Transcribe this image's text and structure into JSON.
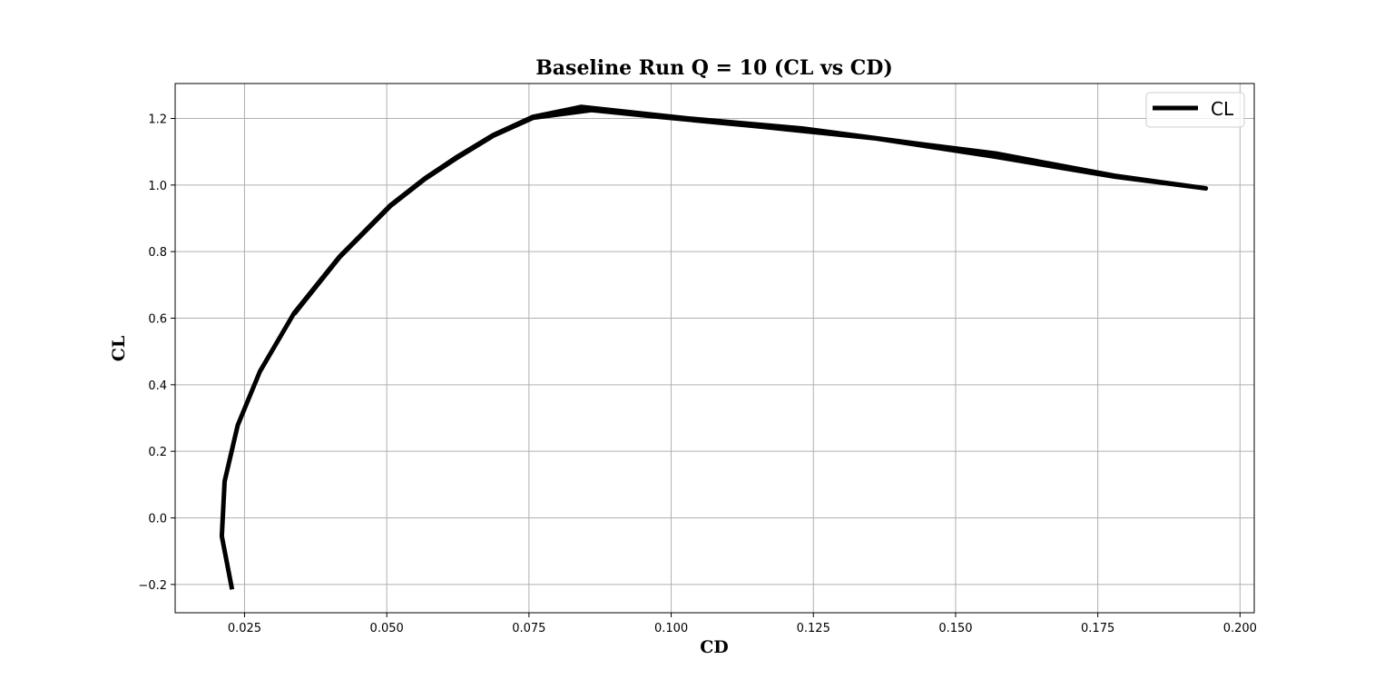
{
  "chart_data": {
    "type": "line",
    "title": "Baseline Run Q = 10 (CL vs CD)",
    "xlabel": "CD",
    "ylabel": "CL",
    "xlim": [
      0.0128,
      0.2025
    ],
    "ylim": [
      -0.285,
      1.305
    ],
    "xticks": [
      0.025,
      0.05,
      0.075,
      0.1,
      0.125,
      0.15,
      0.175,
      0.2
    ],
    "xtick_labels": [
      "0.025",
      "0.050",
      "0.075",
      "0.100",
      "0.125",
      "0.150",
      "0.175",
      "0.200"
    ],
    "yticks": [
      -0.2,
      0.0,
      0.2,
      0.4,
      0.6,
      0.8,
      1.0,
      1.2
    ],
    "ytick_labels": [
      "−0.2",
      "0.0",
      "0.2",
      "0.4",
      "0.6",
      "0.8",
      "1.0",
      "1.2"
    ],
    "grid": true,
    "legend_position": "top-right",
    "series_color": "#000000",
    "series": [
      {
        "name": "CL",
        "x": [
          0.0228,
          0.021,
          0.0215,
          0.0238,
          0.0277,
          0.0337,
          0.0417,
          0.0507,
          0.0567,
          0.0622,
          0.0687,
          0.0757,
          0.0842,
          0.103,
          0.123,
          0.143,
          0.157,
          0.178,
          0.194,
          0.178,
          0.157,
          0.136,
          0.116,
          0.096,
          0.086,
          0.0757,
          0.0687,
          0.0622,
          0.0567,
          0.0507,
          0.0417,
          0.0337
        ],
        "y": [
          -0.215,
          -0.055,
          0.11,
          0.278,
          0.44,
          0.615,
          0.785,
          0.94,
          1.02,
          1.083,
          1.15,
          1.205,
          1.235,
          1.2,
          1.17,
          1.125,
          1.095,
          1.028,
          0.99,
          1.025,
          1.085,
          1.14,
          1.175,
          1.208,
          1.225,
          1.202,
          1.148,
          1.08,
          1.018,
          0.938,
          0.783,
          0.612
        ]
      }
    ]
  }
}
